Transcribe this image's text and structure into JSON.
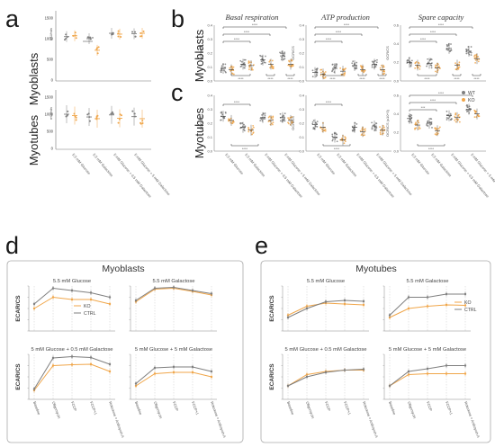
{
  "panel_labels": {
    "a": "a",
    "b": "b",
    "c": "c",
    "d": "d",
    "e": "e"
  },
  "row_labels": {
    "myoblasts": "Myoblasts",
    "myotubes": "Myotubes"
  },
  "colors": {
    "wt": "#7f7f7f",
    "ko": "#f0a64a",
    "ctrl": "#7f7f7f",
    "box": "#bfbfbf"
  },
  "a": {
    "ylabel": "mU/min",
    "conditions": [
      "5.5 mM Glucose",
      "5.5 mM Galactose",
      "5 mM Glucose + 0.5 mM Galactose",
      "5 mM Glucose + 5 mM Galactose"
    ],
    "myoblasts": {
      "yticks": [
        "1500",
        "1000",
        "500",
        "0"
      ],
      "star": "*"
    },
    "myotubes": {
      "yticks": [
        "1500",
        "1000",
        "500",
        "0"
      ]
    }
  },
  "b_titles": [
    "Basal respiration",
    "ATP production",
    "Spare capacity"
  ],
  "bc": {
    "ylabel": "OCR/CS",
    "ylabel_alt": "OCR/CS (x10^3)",
    "groups": [
      "5.5 mM Glucose",
      "5.5 mM Galactose",
      "5 mM Glucose + 0.5 mM Galactose",
      "5 mM Glucose + 5 mM Galactose"
    ],
    "legend": [
      "WT",
      "KO"
    ],
    "sig": "****",
    "sig3": "***",
    "b_yticks": [
      [
        "0.4",
        "0.3",
        "0.2",
        "0.1",
        "0.0"
      ],
      [
        "0.4",
        "0.3",
        "0.2",
        "0.1",
        "0.0"
      ],
      [
        "0.6",
        "0.4",
        "0.2",
        "0.0"
      ]
    ],
    "c_yticks": [
      [
        "0.4",
        "0.3",
        "0.2",
        "0.1",
        "0.0"
      ],
      [
        "0.4",
        "0.3",
        "0.2",
        "0.1",
        "0.0"
      ],
      [
        "0.6",
        "0.4",
        "0.2",
        "0.0"
      ]
    ]
  },
  "d": {
    "title": "Myoblasts",
    "panels": [
      "5.5 mM Glucose",
      "5.5 mM Galactose",
      "5 mM Glucose + 0.5 mM Galactose",
      "5 mM Glucose + 5 mM Galactose"
    ],
    "ylabel": "ECAR/CS",
    "legend": [
      "KO",
      "CTRL"
    ]
  },
  "e": {
    "title": "Myotubes",
    "panels": [
      "5.5 mM Glucose",
      "5.5 mM Galactose",
      "5 mM Glucose + 0.5 mM Galactose",
      "5 mM Glucose + 5 mM Galactose"
    ],
    "ylabel": "ECAR/CS",
    "legend": [
      "KO",
      "CTRL"
    ]
  },
  "timepoints": [
    "Baseline",
    "Oligomycin",
    "FCCP",
    "FCCP+1",
    "Rotenone + Antimycin A"
  ],
  "chart_data": [
    {
      "type": "line",
      "title": "Myoblasts",
      "subplots": [
        {
          "title": "5.5 mM Glucose",
          "x": [
            "Baseline",
            "Oligomycin",
            "FCCP",
            "FCCP+1",
            "Rotenone + Antimycin A"
          ],
          "series": [
            {
              "name": "KO",
              "values": [
                0.5,
                0.75,
                0.7,
                0.7,
                0.6
              ]
            },
            {
              "name": "CTRL",
              "values": [
                0.6,
                0.95,
                0.9,
                0.85,
                0.75
              ]
            }
          ]
        },
        {
          "title": "5.5 mM Galactose",
          "x": [
            "Baseline",
            "Oligomycin",
            "FCCP",
            "FCCP+1",
            "Rotenone + Antimycin A"
          ],
          "series": [
            {
              "name": "KO",
              "values": [
                0.65,
                0.93,
                0.95,
                0.88,
                0.8
              ]
            },
            {
              "name": "CTRL",
              "values": [
                0.68,
                0.95,
                0.97,
                0.9,
                0.83
              ]
            }
          ]
        },
        {
          "title": "5 mM Glucose + 0.5 mM Galactose",
          "x": [
            "Baseline",
            "Oligomycin",
            "FCCP",
            "FCCP+1",
            "Rotenone + Antimycin A"
          ],
          "series": [
            {
              "name": "KO",
              "values": [
                0.2,
                0.75,
                0.77,
                0.78,
                0.62
              ]
            },
            {
              "name": "CTRL",
              "values": [
                0.23,
                0.92,
                0.95,
                0.93,
                0.78
              ]
            }
          ]
        },
        {
          "title": "5 mM Glucose + 5 mM Galactose",
          "x": [
            "Baseline",
            "Oligomycin",
            "FCCP",
            "FCCP+1",
            "Rotenone + Antimycin A"
          ],
          "series": [
            {
              "name": "KO",
              "values": [
                0.3,
                0.57,
                0.6,
                0.6,
                0.5
              ]
            },
            {
              "name": "CTRL",
              "values": [
                0.35,
                0.7,
                0.72,
                0.72,
                0.62
              ]
            }
          ]
        }
      ]
    },
    {
      "type": "line",
      "title": "Myotubes",
      "subplots": [
        {
          "title": "5.5 mM Glucose",
          "x": [
            "Baseline",
            "Oligomycin",
            "FCCP",
            "FCCP+1",
            "Rotenone + Antimycin A"
          ],
          "series": [
            {
              "name": "KO",
              "values": [
                0.35,
                0.55,
                0.62,
                0.6,
                0.58
              ]
            },
            {
              "name": "CTRL",
              "values": [
                0.3,
                0.5,
                0.65,
                0.68,
                0.66
              ]
            }
          ]
        },
        {
          "title": "5.5 mM Galactose",
          "x": [
            "Baseline",
            "Oligomycin",
            "FCCP",
            "FCCP+1",
            "Rotenone + Antimycin A"
          ],
          "series": [
            {
              "name": "KO",
              "values": [
                0.3,
                0.5,
                0.55,
                0.58,
                0.57
              ]
            },
            {
              "name": "CTRL",
              "values": [
                0.35,
                0.75,
                0.75,
                0.82,
                0.82
              ]
            }
          ]
        },
        {
          "title": "5 mM Glucose + 0.5 mM Galactose",
          "x": [
            "Baseline",
            "Oligomycin",
            "FCCP",
            "FCCP+1",
            "Rotenone + Antimycin A"
          ],
          "series": [
            {
              "name": "KO",
              "values": [
                0.3,
                0.55,
                0.62,
                0.65,
                0.65
              ]
            },
            {
              "name": "CTRL",
              "values": [
                0.3,
                0.5,
                0.6,
                0.65,
                0.67
              ]
            }
          ]
        },
        {
          "title": "5 mM Glucose + 5 mM Galactose",
          "x": [
            "Baseline",
            "Oligomycin",
            "FCCP",
            "FCCP+1",
            "Rotenone + Antimycin A"
          ],
          "series": [
            {
              "name": "KO",
              "values": [
                0.3,
                0.55,
                0.57,
                0.57,
                0.57
              ]
            },
            {
              "name": "CTRL",
              "values": [
                0.3,
                0.62,
                0.68,
                0.75,
                0.75
              ]
            }
          ]
        }
      ]
    }
  ]
}
